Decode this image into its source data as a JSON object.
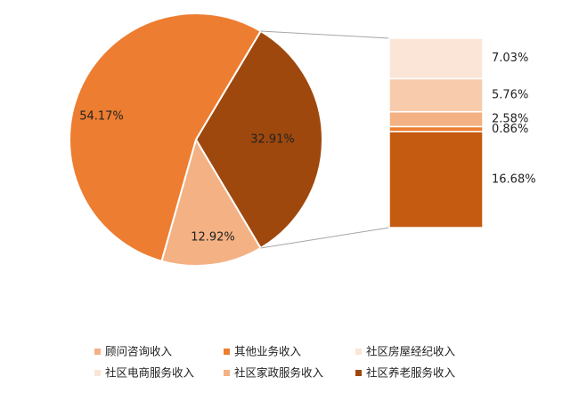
{
  "chart_data": {
    "type": "bar-of-pie",
    "pie": [
      {
        "name": "其他业务收入",
        "value": 54.17,
        "label": "54.17%",
        "color": "#ED7D31"
      },
      {
        "name": "社区养老服务收入",
        "value": 32.91,
        "label": "32.91%",
        "color": "#9E480E"
      },
      {
        "name": "顾问咨询收入",
        "value": 12.92,
        "label": "12.92%",
        "color": "#F4B183"
      }
    ],
    "breakout_of": "社区养老服务收入",
    "bar": [
      {
        "name": "社区房屋经纪收入",
        "value": 7.03,
        "label": "7.03%",
        "color": "#FBE5D6"
      },
      {
        "name": "社区电商服务收入",
        "value": 5.76,
        "label": "5.76%",
        "color": "#F8CBAD"
      },
      {
        "name": "社区家政服务收入",
        "value": 2.58,
        "label": "2.58%",
        "color": "#F4B183"
      },
      {
        "name": "顾问咨询收入",
        "value": 0.86,
        "label": "0.86%",
        "color": "#ED7D31"
      },
      {
        "name": "社区养老服务收入",
        "value": 16.68,
        "label": "16.68%",
        "color": "#C55A11"
      }
    ],
    "legend_position": "bottom",
    "legend": [
      {
        "name": "顾问咨询收入",
        "color": "#F4B183"
      },
      {
        "name": "其他业务收入",
        "color": "#ED7D31"
      },
      {
        "name": "社区房屋经纪收入",
        "color": "#FBE5D6"
      },
      {
        "name": "社区电商服务收入",
        "color": "#FBE5D6"
      },
      {
        "name": "社区家政服务收入",
        "color": "#F4B183"
      },
      {
        "name": "社区养老服务收入",
        "color": "#9E480E"
      }
    ]
  }
}
